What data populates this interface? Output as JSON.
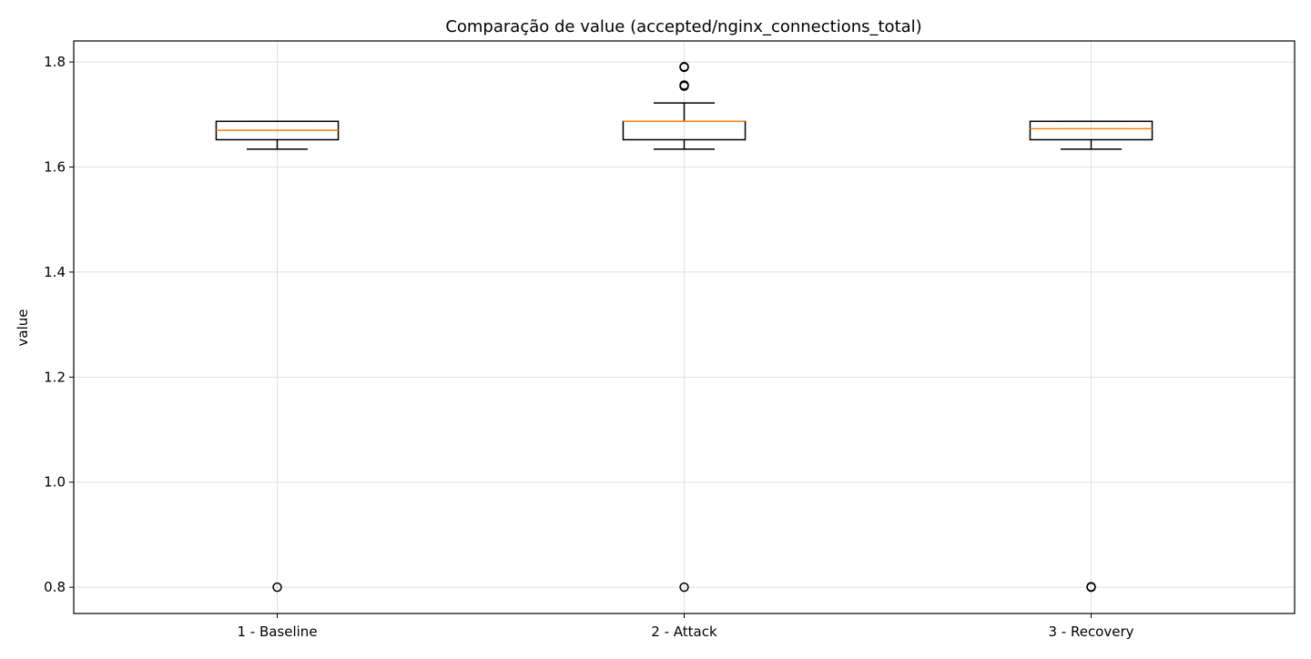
{
  "chart_data": {
    "type": "box",
    "title": "Comparação de value (accepted/nginx_connections_total)",
    "xlabel": "",
    "ylabel": "value",
    "ylim": [
      0.75,
      1.84
    ],
    "yticks": [
      0.8,
      1.0,
      1.2,
      1.4,
      1.6,
      1.8
    ],
    "ytick_labels": [
      "0.8",
      "1.0",
      "1.2",
      "1.4",
      "1.6",
      "1.8"
    ],
    "grid": true,
    "categories": [
      "1 - Baseline",
      "2 - Attack",
      "3 - Recovery"
    ],
    "boxes": [
      {
        "name": "1 - Baseline",
        "whisker_low": 1.634,
        "q1": 1.652,
        "median": 1.67,
        "q3": 1.687,
        "whisker_high": 1.687,
        "outliers": [
          0.8
        ]
      },
      {
        "name": "2 - Attack",
        "whisker_low": 1.634,
        "q1": 1.652,
        "median": 1.687,
        "q3": 1.687,
        "whisker_high": 1.722,
        "outliers": [
          0.8,
          1.754,
          1.756,
          1.79,
          1.791
        ]
      },
      {
        "name": "3 - Recovery",
        "whisker_low": 1.634,
        "q1": 1.652,
        "median": 1.673,
        "q3": 1.687,
        "whisker_high": 1.687,
        "outliers": [
          0.8,
          0.801
        ]
      }
    ],
    "colors": {
      "box": "#000000",
      "median": "#ff7f0e",
      "grid": "#e0e0e0",
      "outlier": "#000000"
    }
  }
}
